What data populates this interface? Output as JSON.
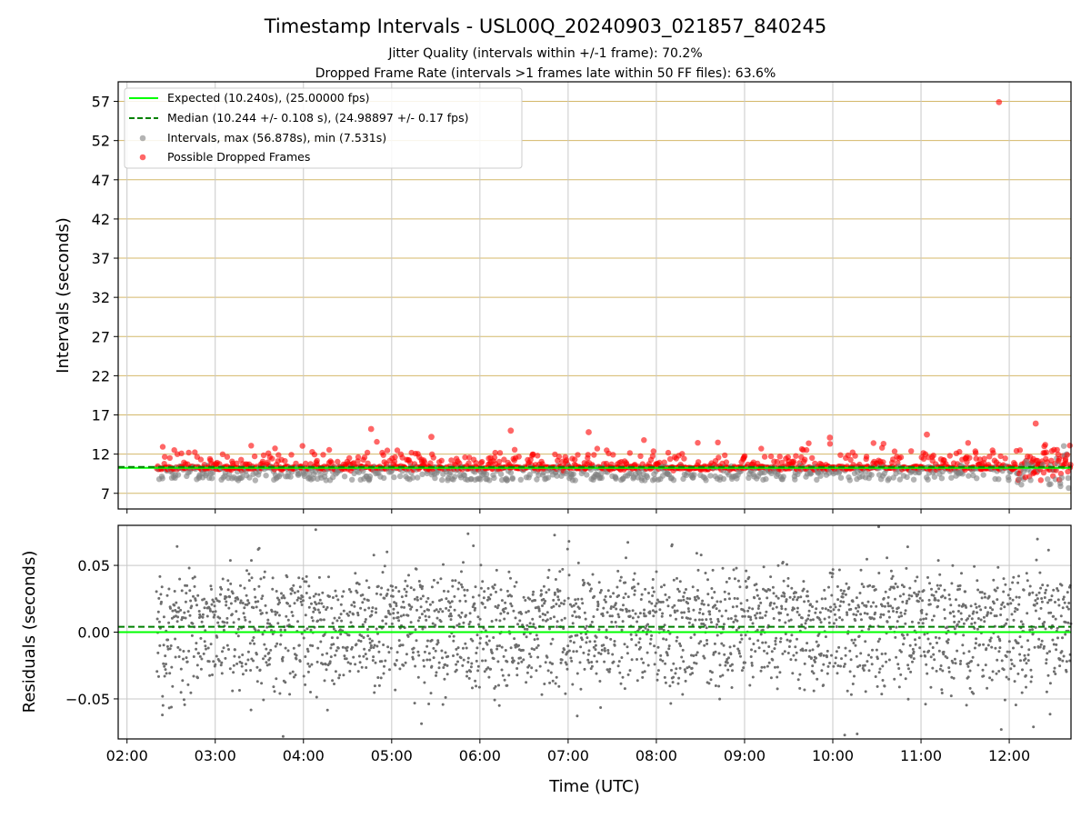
{
  "figure": {
    "title": "Timestamp Intervals - USL00Q_20240903_021857_840245",
    "subtitle_1": "Jitter Quality (intervals within +/-1 frame): 70.2%",
    "subtitle_2": "Dropped Frame Rate (intervals >1 frames late within 50 FF files): 63.6%"
  },
  "chart_data": [
    {
      "type": "scatter",
      "panel": "intervals",
      "ylabel": "Intervals (seconds)",
      "xlabel": "",
      "xlim": [
        "01:54",
        "12:42"
      ],
      "ylim": [
        5,
        59.5
      ],
      "yticks": [
        "7",
        "12",
        "17",
        "22",
        "27",
        "32",
        "37",
        "42",
        "47",
        "52",
        "57"
      ],
      "grid": true,
      "legend_position": "upper-left",
      "expected_interval": 10.24,
      "median_interval": 10.244,
      "time_range": [
        "02:20",
        "12:42"
      ],
      "series": [
        {
          "name": "Expected (10.240s), (25.00000 fps)",
          "kind": "line",
          "color": "#00ff00",
          "y": 10.24
        },
        {
          "name": "Median (10.244 +/- 0.108 s), (24.98897 +/- 0.17 fps)",
          "kind": "dashed-line",
          "color": "#008000",
          "y": 10.244
        },
        {
          "name": "Intervals, max (56.878s), min (7.531s)",
          "kind": "points",
          "color": "#808080",
          "max": 56.878,
          "min": 7.531
        },
        {
          "name": "Possible Dropped Frames",
          "kind": "points",
          "color": "#ff0000",
          "notable_points": [
            {
              "x": "11:53",
              "y": 56.9
            },
            {
              "x": "12:18",
              "y": 15.9
            },
            {
              "x": "06:21",
              "y": 15.0
            },
            {
              "x": "04:46",
              "y": 15.2
            },
            {
              "x": "07:14",
              "y": 14.8
            },
            {
              "x": "11:04",
              "y": 14.5
            },
            {
              "x": "05:27",
              "y": 14.2
            },
            {
              "x": "09:58",
              "y": 14.1
            }
          ]
        }
      ]
    },
    {
      "type": "scatter",
      "panel": "residuals",
      "ylabel": "Residuals (seconds)",
      "xlabel": "Time (UTC)",
      "xlim": [
        "01:54",
        "12:42"
      ],
      "ylim": [
        -0.08,
        0.08
      ],
      "yticks": [
        "−0.05",
        "0.00",
        "0.05"
      ],
      "xticks": [
        "02:00",
        "03:00",
        "04:00",
        "05:00",
        "06:00",
        "07:00",
        "08:00",
        "09:00",
        "10:00",
        "11:00",
        "12:00"
      ],
      "grid": true,
      "series": [
        {
          "kind": "line",
          "color": "#00ff00",
          "y": 0.0
        },
        {
          "kind": "dashed-line",
          "color": "#008000",
          "y": 0.004
        },
        {
          "kind": "points",
          "color": "#808080",
          "spread": 0.08
        }
      ]
    }
  ]
}
